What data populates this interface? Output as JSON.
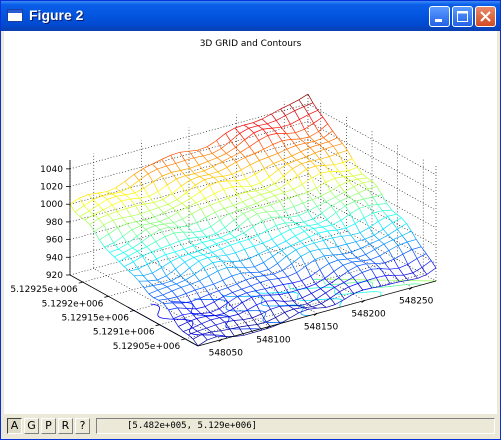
{
  "window": {
    "title": "Figure 2",
    "icon": "figure-window-icon",
    "title_color": "#0356e0"
  },
  "title_buttons": {
    "minimize": "minimize-icon",
    "maximize": "maximize-icon",
    "close": "close-icon"
  },
  "chart_data": {
    "type": "surface",
    "title": "3D GRID and Contours",
    "x_tick_labels": [
      "548050",
      "548100",
      "548150",
      "548200",
      "548250"
    ],
    "y_tick_labels": [
      "5.12905e+006",
      "5.1291e+006",
      "5.12915e+006",
      "5.1292e+006",
      "5.12925e+006"
    ],
    "z_tick_labels": [
      "920",
      "940",
      "960",
      "980",
      "1000",
      "1020",
      "1040"
    ],
    "x_range": [
      548025,
      548275
    ],
    "y_range": [
      5129025,
      5129275
    ],
    "zlim": [
      920,
      1050
    ],
    "colormap": "jet",
    "grid": true,
    "contours": "projected on floor",
    "corner_heights": {
      "low_x_low_y": 918,
      "high_x_low_y": 935,
      "low_x_high_y": 1000,
      "high_x_high_y": 1048
    }
  },
  "toolbar": {
    "buttons": [
      {
        "label": "A",
        "pressed": true
      },
      {
        "label": "G",
        "pressed": false
      },
      {
        "label": "P",
        "pressed": false
      },
      {
        "label": "R",
        "pressed": false
      },
      {
        "label": "?",
        "pressed": false
      }
    ],
    "coordinates": "[5.482e+005, 5.129e+006]"
  }
}
